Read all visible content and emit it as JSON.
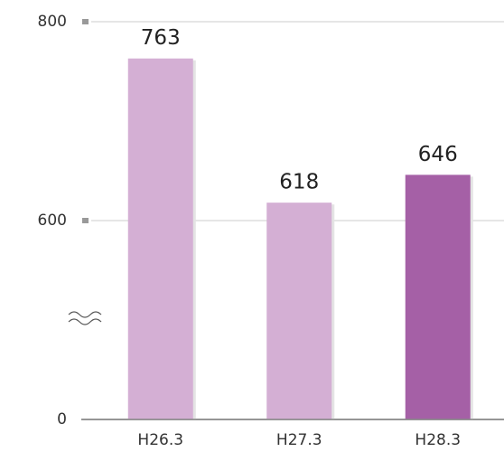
{
  "chart_data": {
    "type": "bar",
    "categories": [
      "H26.3",
      "H27.3",
      "H28.3"
    ],
    "values": [
      763,
      618,
      646
    ],
    "colors": [
      "#d4afd4",
      "#d4afd4",
      "#a560a6"
    ],
    "ylim": [
      0,
      800
    ],
    "yticks": [
      0,
      600,
      800
    ],
    "grid": true,
    "axis_break": true
  }
}
